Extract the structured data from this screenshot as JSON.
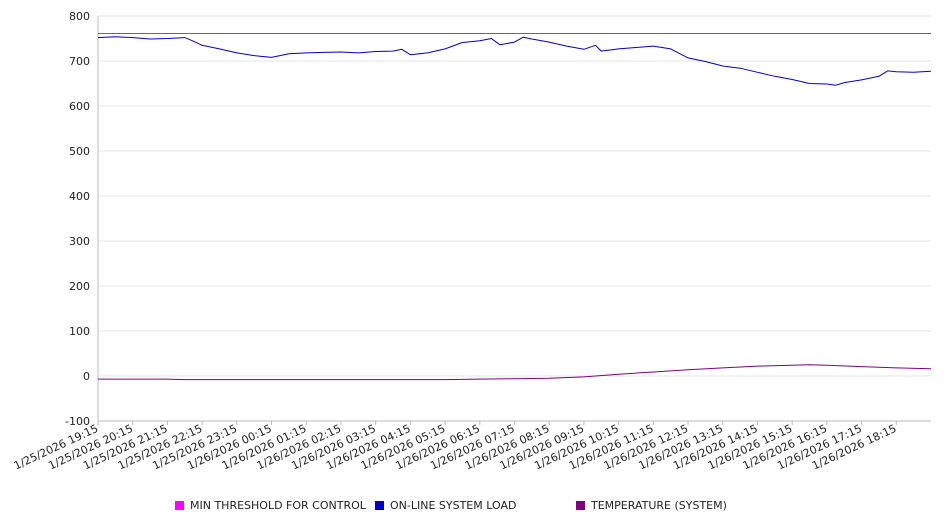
{
  "chart_data": {
    "type": "line",
    "title": "",
    "xlabel": "",
    "ylabel": "",
    "ylim": [
      -100,
      800
    ],
    "y_ticks": [
      800,
      700,
      600,
      500,
      400,
      300,
      200,
      100,
      0,
      -100
    ],
    "grid": "horizontal",
    "legend_placement": "bottom",
    "x_tick_labels": [
      "1/25/2026 19:15",
      "1/25/2026 20:15",
      "1/25/2026 21:15",
      "1/25/2026 22:15",
      "1/25/2026 23:15",
      "1/26/2026 00:15",
      "1/26/2026 01:15",
      "1/26/2026 02:15",
      "1/26/2026 03:15",
      "1/26/2026 04:15",
      "1/26/2026 05:15",
      "1/26/2026 06:15",
      "1/26/2026 07:15",
      "1/26/2026 08:15",
      "1/26/2026 09:15",
      "1/26/2026 10:15",
      "1/26/2026 11:15",
      "1/26/2026 12:15",
      "1/26/2026 13:15",
      "1/26/2026 14:15",
      "1/26/2026 15:15",
      "1/26/2026 16:15",
      "1/26/2026 17:15",
      "1/26/2026 18:15"
    ],
    "x_start": "1/25/2026 19:15",
    "x_end": "1/26/2026 19:15",
    "series": [
      {
        "name": "MIN THRESHOLD FOR CONTROL",
        "color": "#ff00ff",
        "points": [
          [
            "1/25/2026 19:15",
            761
          ],
          [
            "1/26/2026 19:15",
            761
          ]
        ]
      },
      {
        "name": "ON-LINE SYSTEM LOAD",
        "color": "#0000cc",
        "points": [
          [
            "1/25/2026 19:15",
            752
          ],
          [
            "1/25/2026 19:45",
            754
          ],
          [
            "1/25/2026 20:15",
            752
          ],
          [
            "1/25/2026 20:45",
            749
          ],
          [
            "1/25/2026 21:15",
            750
          ],
          [
            "1/25/2026 21:45",
            752
          ],
          [
            "1/25/2026 22:00",
            744
          ],
          [
            "1/25/2026 22:15",
            735
          ],
          [
            "1/25/2026 22:45",
            727
          ],
          [
            "1/25/2026 23:15",
            718
          ],
          [
            "1/25/2026 23:45",
            712
          ],
          [
            "1/26/2026 00:15",
            708
          ],
          [
            "1/26/2026 00:45",
            716
          ],
          [
            "1/26/2026 01:15",
            718
          ],
          [
            "1/26/2026 01:45",
            719
          ],
          [
            "1/26/2026 02:15",
            720
          ],
          [
            "1/26/2026 02:45",
            718
          ],
          [
            "1/26/2026 03:15",
            721
          ],
          [
            "1/26/2026 03:45",
            722
          ],
          [
            "1/26/2026 04:00",
            726
          ],
          [
            "1/26/2026 04:15",
            714
          ],
          [
            "1/26/2026 04:45",
            718
          ],
          [
            "1/26/2026 05:15",
            727
          ],
          [
            "1/26/2026 05:45",
            741
          ],
          [
            "1/26/2026 06:15",
            745
          ],
          [
            "1/26/2026 06:35",
            750
          ],
          [
            "1/26/2026 06:50",
            736
          ],
          [
            "1/26/2026 07:15",
            742
          ],
          [
            "1/26/2026 07:30",
            753
          ],
          [
            "1/26/2026 07:45",
            749
          ],
          [
            "1/26/2026 08:15",
            742
          ],
          [
            "1/26/2026 08:45",
            733
          ],
          [
            "1/26/2026 09:15",
            726
          ],
          [
            "1/26/2026 09:35",
            735
          ],
          [
            "1/26/2026 09:45",
            722
          ],
          [
            "1/26/2026 10:15",
            727
          ],
          [
            "1/26/2026 10:45",
            730
          ],
          [
            "1/26/2026 11:15",
            733
          ],
          [
            "1/26/2026 11:45",
            727
          ],
          [
            "1/26/2026 12:15",
            707
          ],
          [
            "1/26/2026 12:45",
            699
          ],
          [
            "1/26/2026 13:15",
            689
          ],
          [
            "1/26/2026 13:45",
            684
          ],
          [
            "1/26/2026 14:15",
            675
          ],
          [
            "1/26/2026 14:45",
            666
          ],
          [
            "1/26/2026 15:15",
            659
          ],
          [
            "1/26/2026 15:45",
            650
          ],
          [
            "1/26/2026 16:15",
            649
          ],
          [
            "1/26/2026 16:30",
            646
          ],
          [
            "1/26/2026 16:45",
            652
          ],
          [
            "1/26/2026 17:15",
            658
          ],
          [
            "1/26/2026 17:45",
            666
          ],
          [
            "1/26/2026 18:00",
            678
          ],
          [
            "1/26/2026 18:15",
            676
          ],
          [
            "1/26/2026 18:45",
            675
          ],
          [
            "1/26/2026 19:15",
            677
          ]
        ]
      },
      {
        "name": "TEMPERATURE (SYSTEM)",
        "color": "#800080",
        "points": [
          [
            "1/25/2026 19:15",
            -7
          ],
          [
            "1/25/2026 21:15",
            -7
          ],
          [
            "1/25/2026 21:45",
            -8
          ],
          [
            "1/26/2026 05:15",
            -8
          ],
          [
            "1/26/2026 06:15",
            -7
          ],
          [
            "1/26/2026 07:15",
            -6
          ],
          [
            "1/26/2026 08:15",
            -5
          ],
          [
            "1/26/2026 09:15",
            -2
          ],
          [
            "1/26/2026 10:15",
            4
          ],
          [
            "1/26/2026 11:15",
            9
          ],
          [
            "1/26/2026 12:15",
            14
          ],
          [
            "1/26/2026 13:15",
            18
          ],
          [
            "1/26/2026 14:15",
            22
          ],
          [
            "1/26/2026 15:15",
            24
          ],
          [
            "1/26/2026 15:45",
            25
          ],
          [
            "1/26/2026 16:15",
            24
          ],
          [
            "1/26/2026 17:15",
            21
          ],
          [
            "1/26/2026 18:15",
            18
          ],
          [
            "1/26/2026 19:15",
            16
          ]
        ]
      }
    ]
  }
}
